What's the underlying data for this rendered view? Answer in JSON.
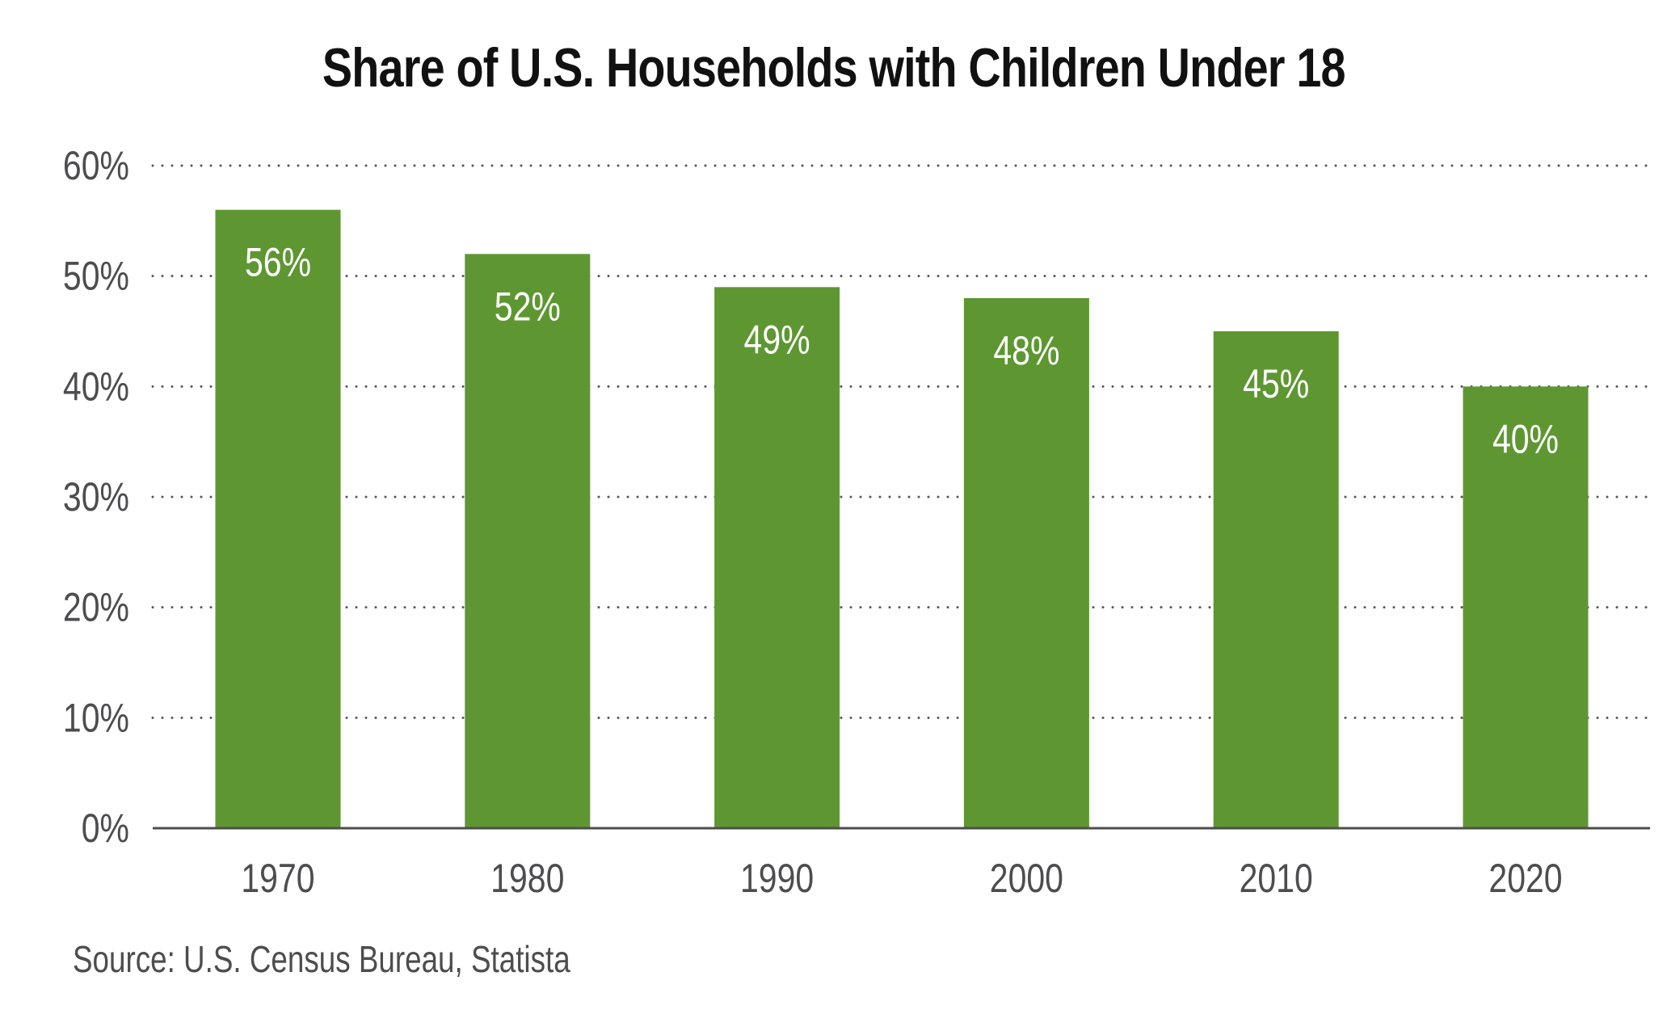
{
  "chart_data": {
    "type": "bar",
    "title": "Share of U.S. Households with Children Under 18",
    "categories": [
      "1970",
      "1980",
      "1990",
      "2000",
      "2010",
      "2020"
    ],
    "values": [
      56,
      52,
      49,
      48,
      45,
      40
    ],
    "data_labels": [
      "56%",
      "52%",
      "49%",
      "48%",
      "45%",
      "40%"
    ],
    "xlabel": "",
    "ylabel": "",
    "ylim": [
      0,
      60
    ],
    "yticks": [
      0,
      10,
      20,
      30,
      40,
      50,
      60
    ],
    "ytick_labels": [
      "0%",
      "10%",
      "20%",
      "30%",
      "40%",
      "50%",
      "60%"
    ],
    "grid": "horizontal dotted",
    "legend": "none",
    "bar_color": "#5e9732",
    "source": "Source: U.S. Census Bureau, Statista"
  }
}
